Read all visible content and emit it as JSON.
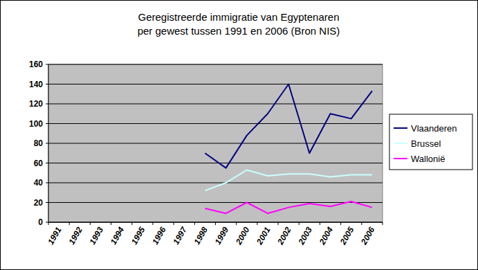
{
  "chart_data": {
    "type": "line",
    "title": "Geregistreerde immigratie van Egyptenaren\nper gewest tussen 1991 en 2006 (Bron NIS)",
    "categories": [
      "1991",
      "1992",
      "1993",
      "1994",
      "1995",
      "1996",
      "1997",
      "1998",
      "1999",
      "2000",
      "2001",
      "2002",
      "2003",
      "2004",
      "2005",
      "2006"
    ],
    "series": [
      {
        "name": "Vlaanderen",
        "color": "#000080",
        "values": [
          null,
          null,
          null,
          null,
          null,
          null,
          null,
          70,
          55,
          88,
          110,
          140,
          70,
          110,
          105,
          133
        ]
      },
      {
        "name": "Brussel",
        "color": "#ccffff",
        "values": [
          null,
          null,
          null,
          null,
          null,
          null,
          null,
          32,
          40,
          53,
          47,
          49,
          49,
          46,
          48,
          48
        ]
      },
      {
        "name": "Wallonië",
        "color": "#ff00ff",
        "values": [
          null,
          null,
          null,
          null,
          null,
          null,
          null,
          14,
          9,
          20,
          9,
          15,
          19,
          16,
          21,
          15
        ]
      }
    ],
    "ylim": [
      0,
      160
    ],
    "yticks": [
      0,
      20,
      40,
      60,
      80,
      100,
      120,
      140,
      160
    ],
    "grid": true,
    "legend": "right"
  }
}
